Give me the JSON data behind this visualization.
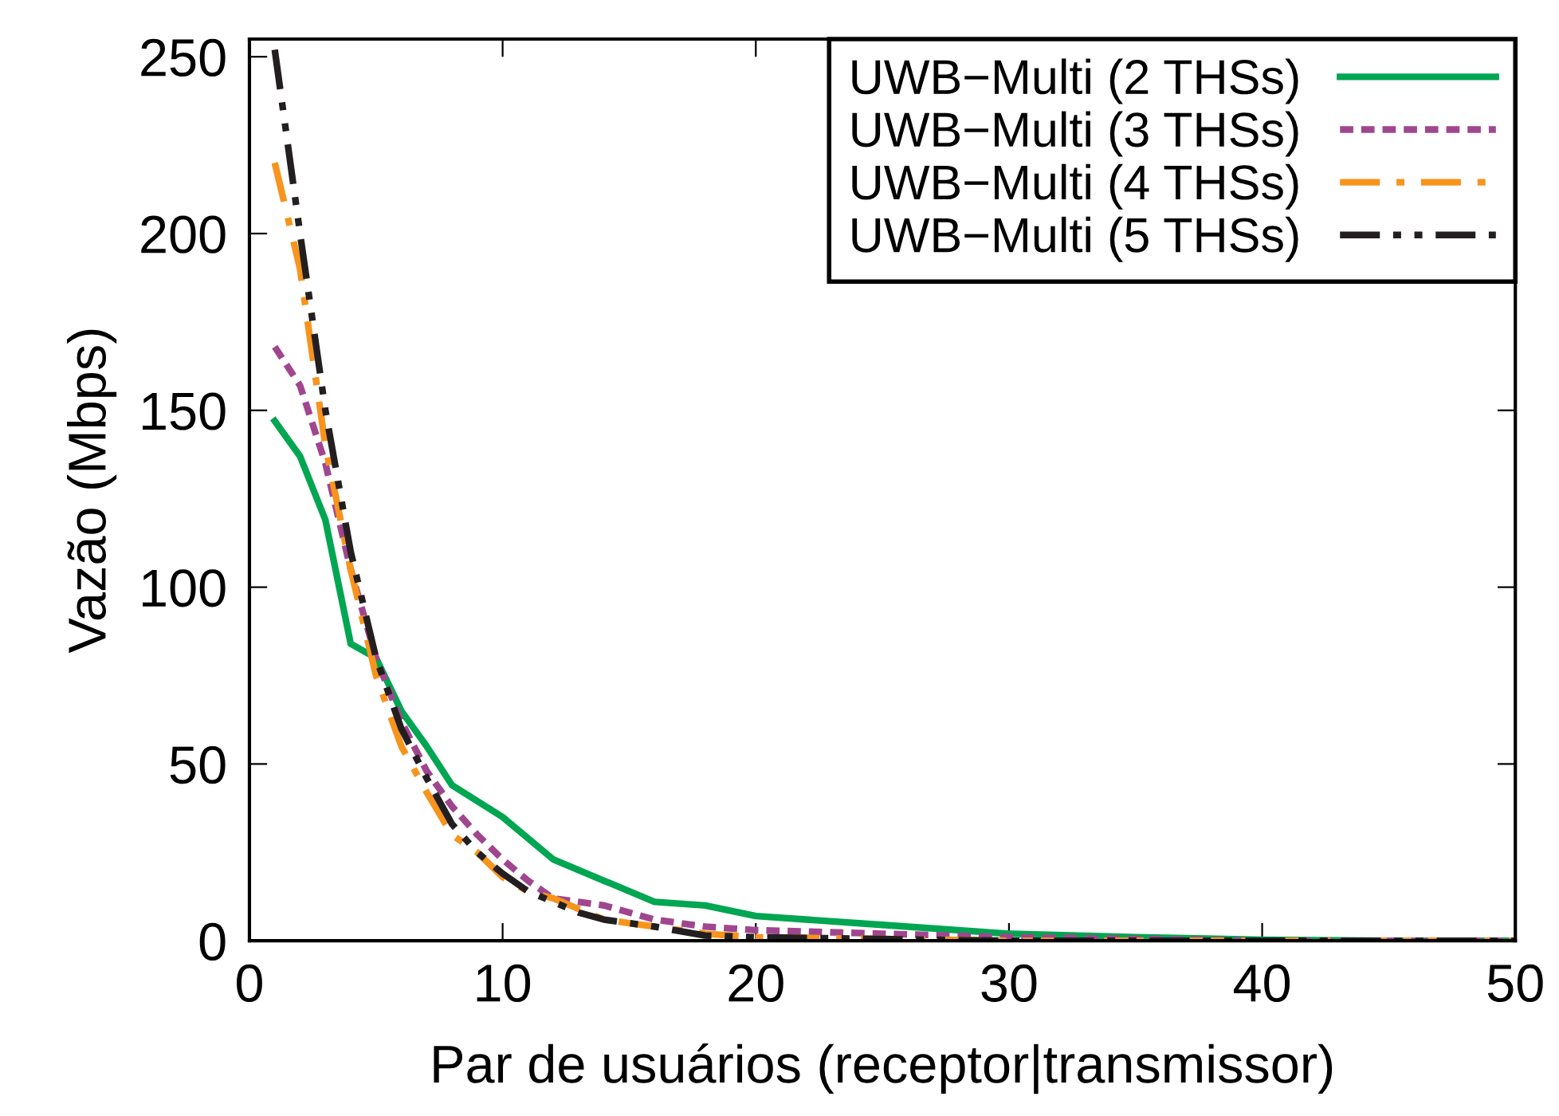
{
  "chart_data": {
    "type": "line",
    "xlabel": "Par de usuários (receptor|transmissor)",
    "ylabel": "Vazão (Mbps)",
    "xlim": [
      0,
      50
    ],
    "ylim": [
      0,
      255
    ],
    "xticks": [
      0,
      10,
      20,
      30,
      40,
      50
    ],
    "yticks": [
      0,
      50,
      100,
      150,
      200,
      250
    ],
    "grid": false,
    "legend": "top right",
    "marker": "none",
    "series": [
      {
        "name": "UWB−Multi (2 THSs)",
        "color": "#00a651",
        "line_style": "solid",
        "x": [
          1,
          2,
          3,
          4,
          5,
          6,
          7,
          8,
          10,
          12,
          14,
          16,
          18,
          20,
          25,
          30,
          35,
          40,
          45,
          50
        ],
        "values": [
          147,
          137,
          119,
          84,
          80,
          65,
          55,
          44,
          35,
          23,
          17,
          11,
          10,
          7,
          4.5,
          2,
          1,
          0.3,
          0,
          0
        ]
      },
      {
        "name": "UWB−Multi (3 THSs)",
        "color": "#a0468f",
        "line_style": "dotted",
        "x": [
          1,
          2,
          3,
          4,
          5,
          6,
          7,
          8,
          9,
          10,
          11,
          12,
          13,
          14,
          15,
          16,
          18,
          20,
          25,
          30,
          35,
          40,
          45,
          50
        ],
        "values": [
          168,
          157,
          135,
          105,
          80,
          62,
          48,
          38,
          30,
          23,
          17,
          12,
          11,
          10,
          8,
          6,
          4,
          3,
          2,
          1,
          0.5,
          0,
          0,
          0
        ]
      },
      {
        "name": "UWB−Multi (4 THSs)",
        "color": "#f7941d",
        "line_style": "dashdot",
        "x": [
          1,
          2,
          3,
          4,
          5,
          6,
          7,
          8,
          9,
          10,
          11,
          12,
          13,
          14,
          15,
          16,
          18,
          20,
          25,
          30,
          35,
          40,
          45,
          50
        ],
        "values": [
          220,
          190,
          140,
          105,
          75,
          55,
          42,
          30,
          25,
          18,
          14,
          12,
          9,
          6,
          5,
          4,
          2,
          1,
          0.5,
          0,
          0,
          0,
          0,
          0
        ]
      },
      {
        "name": "UWB−Multi (5 THSs)",
        "color": "#231f20",
        "line_style": "dashdotdot",
        "x": [
          1,
          2,
          3,
          4,
          5,
          6,
          7,
          8,
          9,
          10,
          11,
          12,
          13,
          14,
          15,
          16,
          18,
          20,
          25,
          30,
          35,
          40,
          45,
          50
        ],
        "values": [
          252,
          200,
          150,
          110,
          80,
          60,
          46,
          33,
          25,
          19,
          14,
          11,
          8,
          6,
          5,
          4,
          1.5,
          1,
          0.5,
          0,
          0,
          0,
          0,
          0
        ]
      }
    ]
  }
}
